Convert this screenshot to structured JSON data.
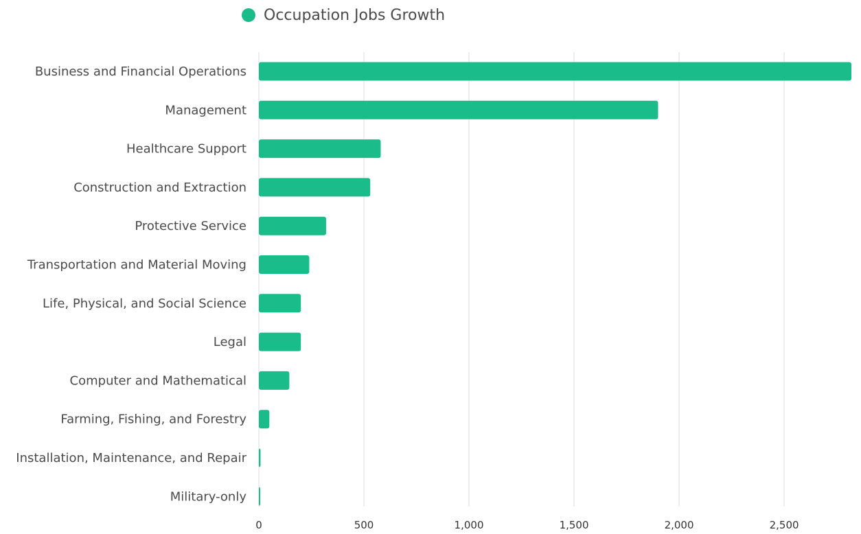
{
  "legend": {
    "label": "Occupation Jobs Growth",
    "color": "#1abc8a"
  },
  "chart_data": {
    "type": "bar",
    "orientation": "horizontal",
    "categories": [
      "Business and Financial Operations",
      "Management",
      "Healthcare Support",
      "Construction and Extraction",
      "Protective Service",
      "Transportation and Material Moving",
      "Life, Physical, and Social Science",
      "Legal",
      "Computer and Mathematical",
      "Farming, Fishing, and Forestry",
      "Installation, Maintenance, and Repair",
      "Military-only"
    ],
    "series": [
      {
        "name": "Occupation Jobs Growth",
        "color": "#1abc8a",
        "values": [
          2820,
          1900,
          580,
          530,
          320,
          240,
          200,
          200,
          145,
          50,
          8,
          3
        ]
      }
    ],
    "xlim": [
      0,
      2820
    ],
    "xticks": [
      0,
      500,
      1000,
      1500,
      2000,
      2500
    ],
    "xtick_labels": [
      "0",
      "500",
      "1,000",
      "1,500",
      "2,000",
      "2,500"
    ],
    "grid": "vertical",
    "legend_position": "top"
  }
}
